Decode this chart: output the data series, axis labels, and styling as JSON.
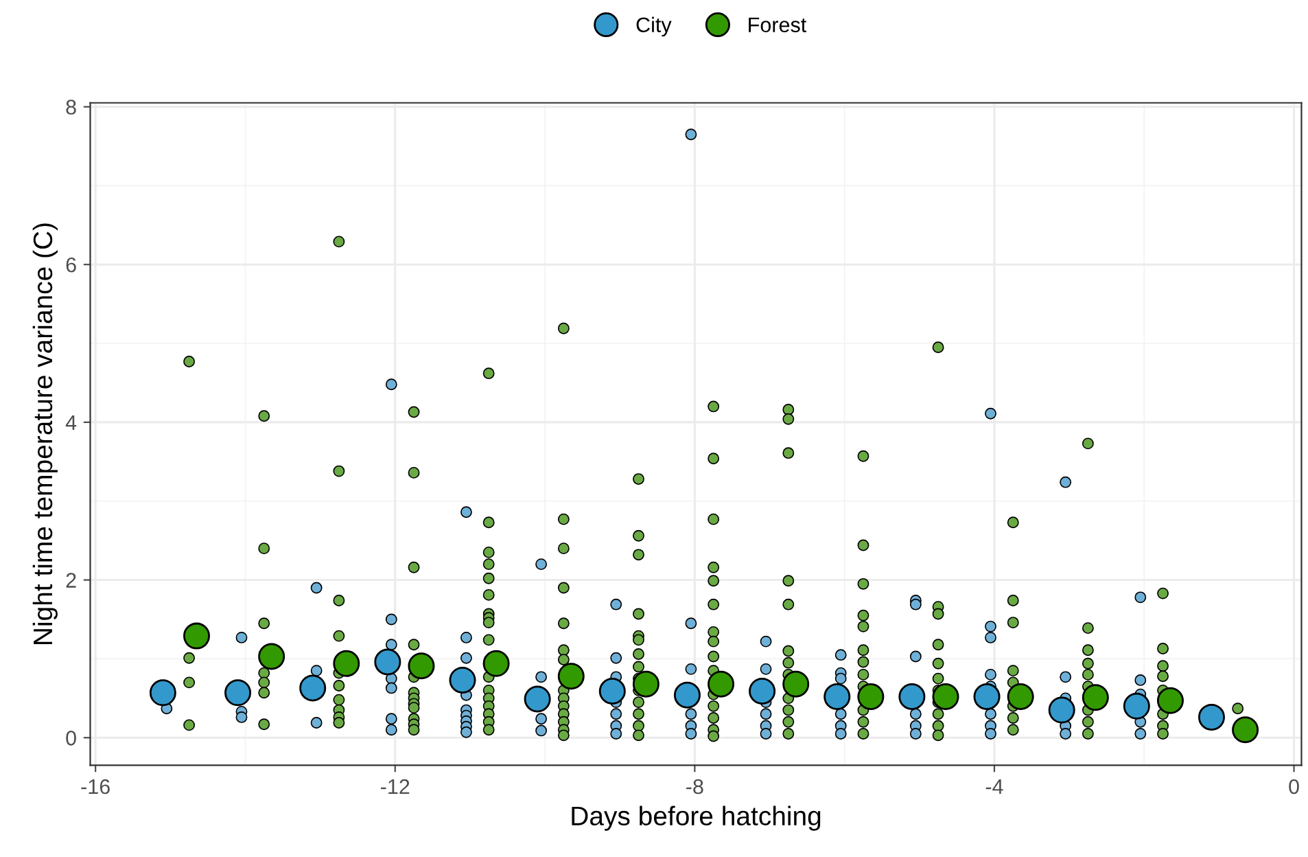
{
  "chart_data": {
    "type": "scatter",
    "xlabel": "Days before hatching",
    "ylabel": "Night time temperature variance (C)",
    "xlim": [
      -16.07,
      0.1
    ],
    "ylim": [
      -0.35,
      8.05
    ],
    "xticks": [
      -16,
      -12,
      -8,
      -4,
      0
    ],
    "yticks": [
      0,
      2,
      4,
      6,
      8
    ],
    "grid": true,
    "legend": "top",
    "marker": "circle",
    "series": [
      {
        "color": "#6fb0d8",
        "x": [
          -15.05,
          -14.05,
          -14.05,
          -14.05,
          -13.05,
          -13.05,
          -13.05,
          -12.05,
          -12.05,
          -12.05,
          -12.05,
          -12.05,
          -12.05,
          -12.05,
          -11.05,
          -11.05,
          -11.05,
          -11.05,
          -11.05,
          -11.05,
          -11.05,
          -11.05,
          -11.05,
          -10.05,
          -10.05,
          -10.05,
          -10.05,
          -9.05,
          -9.05,
          -9.05,
          -9.05,
          -9.05,
          -9.05,
          -9.05,
          -8.05,
          -8.05,
          -8.05,
          -8.05,
          -8.05,
          -8.05,
          -7.05,
          -7.05,
          -7.05,
          -7.05,
          -7.05,
          -7.05,
          -6.05,
          -6.05,
          -6.05,
          -6.05,
          -6.05,
          -6.05,
          -5.05,
          -5.05,
          -5.05,
          -5.05,
          -5.05,
          -5.05,
          -4.05,
          -4.05,
          -4.05,
          -4.05,
          -4.05,
          -4.05,
          -4.05,
          -4.05,
          -3.05,
          -3.05,
          -3.05,
          -3.05,
          -3.05,
          -2.05,
          -2.05,
          -2.05,
          -2.05,
          -2.05
        ],
        "values": [
          0.37,
          1.27,
          0.33,
          0.26,
          1.9,
          0.85,
          0.19,
          4.48,
          1.5,
          1.18,
          0.75,
          0.63,
          0.24,
          0.1,
          2.86,
          1.27,
          1.01,
          0.54,
          0.35,
          0.28,
          0.21,
          0.14,
          0.07,
          2.2,
          0.77,
          0.24,
          0.09,
          1.69,
          1.01,
          0.77,
          0.45,
          0.3,
          0.15,
          0.05,
          7.65,
          1.45,
          0.87,
          0.3,
          0.15,
          0.05,
          1.22,
          0.87,
          0.45,
          0.3,
          0.15,
          0.05,
          1.05,
          0.82,
          0.75,
          0.3,
          0.15,
          0.05,
          1.74,
          1.69,
          1.03,
          0.3,
          0.15,
          0.05,
          4.11,
          1.41,
          1.27,
          0.8,
          0.65,
          0.3,
          0.15,
          0.05,
          3.24,
          0.77,
          0.5,
          0.15,
          0.05,
          1.78,
          0.73,
          0.55,
          0.2,
          0.05
        ]
      },
      {
        "color": "#6aaa44",
        "x": [
          -14.75,
          -14.75,
          -14.75,
          -14.75,
          -13.75,
          -13.75,
          -13.75,
          -13.75,
          -13.75,
          -13.75,
          -13.75,
          -12.75,
          -12.75,
          -12.75,
          -12.75,
          -12.75,
          -12.75,
          -12.75,
          -12.75,
          -12.75,
          -12.75,
          -11.75,
          -11.75,
          -11.75,
          -11.75,
          -11.75,
          -11.75,
          -11.75,
          -11.75,
          -11.75,
          -11.75,
          -11.75,
          -11.75,
          -10.75,
          -10.75,
          -10.75,
          -10.75,
          -10.75,
          -10.75,
          -10.75,
          -10.75,
          -10.75,
          -10.75,
          -10.75,
          -10.75,
          -10.75,
          -10.75,
          -10.75,
          -10.75,
          -10.75,
          -9.75,
          -9.75,
          -9.75,
          -9.75,
          -9.75,
          -9.75,
          -9.75,
          -9.75,
          -9.75,
          -9.75,
          -9.75,
          -9.75,
          -9.75,
          -9.75,
          -8.75,
          -8.75,
          -8.75,
          -8.75,
          -8.75,
          -8.75,
          -8.75,
          -8.75,
          -8.75,
          -8.75,
          -8.75,
          -8.75,
          -8.75,
          -8.75,
          -7.75,
          -7.75,
          -7.75,
          -7.75,
          -7.75,
          -7.75,
          -7.75,
          -7.75,
          -7.75,
          -7.75,
          -7.75,
          -7.75,
          -7.75,
          -7.75,
          -7.75,
          -6.75,
          -6.75,
          -6.75,
          -6.75,
          -6.75,
          -6.75,
          -6.75,
          -6.75,
          -6.75,
          -6.75,
          -6.75,
          -6.75,
          -5.75,
          -5.75,
          -5.75,
          -5.75,
          -5.75,
          -5.75,
          -5.75,
          -5.75,
          -5.75,
          -5.75,
          -5.75,
          -5.75,
          -4.75,
          -4.75,
          -4.75,
          -4.75,
          -4.75,
          -4.75,
          -4.75,
          -4.75,
          -4.75,
          -4.75,
          -4.75,
          -3.75,
          -3.75,
          -3.75,
          -3.75,
          -3.75,
          -3.75,
          -3.75,
          -3.75,
          -2.75,
          -2.75,
          -2.75,
          -2.75,
          -2.75,
          -2.75,
          -2.75,
          -2.75,
          -2.75,
          -1.75,
          -1.75,
          -1.75,
          -1.75,
          -1.75,
          -1.75,
          -1.75,
          -1.75,
          -0.75
        ],
        "values": [
          4.77,
          1.01,
          0.7,
          0.16,
          4.08,
          2.4,
          1.45,
          0.82,
          0.7,
          0.57,
          0.17,
          6.29,
          3.38,
          1.74,
          1.29,
          0.82,
          0.66,
          0.48,
          0.35,
          0.26,
          0.19,
          4.13,
          3.36,
          2.16,
          1.18,
          0.77,
          0.57,
          0.5,
          0.43,
          0.38,
          0.24,
          0.17,
          0.1,
          4.62,
          2.73,
          2.35,
          2.2,
          2.02,
          1.81,
          1.57,
          1.52,
          1.46,
          1.24,
          0.77,
          0.6,
          0.5,
          0.4,
          0.3,
          0.2,
          0.1,
          5.19,
          2.77,
          2.4,
          1.9,
          1.45,
          1.11,
          0.99,
          0.6,
          0.5,
          0.4,
          0.3,
          0.2,
          0.1,
          0.03,
          3.28,
          2.56,
          2.32,
          1.57,
          1.29,
          1.24,
          1.06,
          0.9,
          0.75,
          0.6,
          0.45,
          0.3,
          0.15,
          0.03,
          4.2,
          3.54,
          2.77,
          2.16,
          1.99,
          1.69,
          1.34,
          1.22,
          1.03,
          0.85,
          0.55,
          0.4,
          0.25,
          0.1,
          0.02,
          4.16,
          4.04,
          3.61,
          1.99,
          1.69,
          1.1,
          0.95,
          0.8,
          0.5,
          0.35,
          0.2,
          0.05,
          3.57,
          2.44,
          1.95,
          1.55,
          1.41,
          1.11,
          0.96,
          0.8,
          0.65,
          0.35,
          0.2,
          0.05,
          4.95,
          1.66,
          1.57,
          1.18,
          0.94,
          0.75,
          0.6,
          0.45,
          0.3,
          0.15,
          0.03,
          2.73,
          1.74,
          1.46,
          0.85,
          0.7,
          0.4,
          0.25,
          0.1,
          3.73,
          1.39,
          1.11,
          0.94,
          0.8,
          0.65,
          0.35,
          0.2,
          0.05,
          1.83,
          1.13,
          0.91,
          0.78,
          0.6,
          0.3,
          0.15,
          0.05,
          0.37
        ]
      },
      {
        "name": "City",
        "color": "#3399cc",
        "x": [
          -15.1,
          -14.1,
          -13.1,
          -12.1,
          -11.1,
          -10.1,
          -9.1,
          -8.1,
          -7.1,
          -6.1,
          -5.1,
          -4.1,
          -3.1,
          -2.1,
          -1.1
        ],
        "values": [
          0.57,
          0.57,
          0.63,
          0.96,
          0.73,
          0.49,
          0.59,
          0.54,
          0.59,
          0.52,
          0.52,
          0.52,
          0.35,
          0.4,
          0.26
        ]
      },
      {
        "name": "Forest",
        "color": "#339900",
        "x": [
          -14.65,
          -13.65,
          -12.65,
          -11.65,
          -10.65,
          -9.65,
          -8.65,
          -7.65,
          -6.65,
          -5.65,
          -4.65,
          -3.65,
          -2.65,
          -1.65,
          -0.65
        ],
        "values": [
          1.29,
          1.03,
          0.94,
          0.91,
          0.94,
          0.78,
          0.68,
          0.68,
          0.68,
          0.52,
          0.52,
          0.52,
          0.51,
          0.47,
          0.1
        ]
      }
    ]
  }
}
